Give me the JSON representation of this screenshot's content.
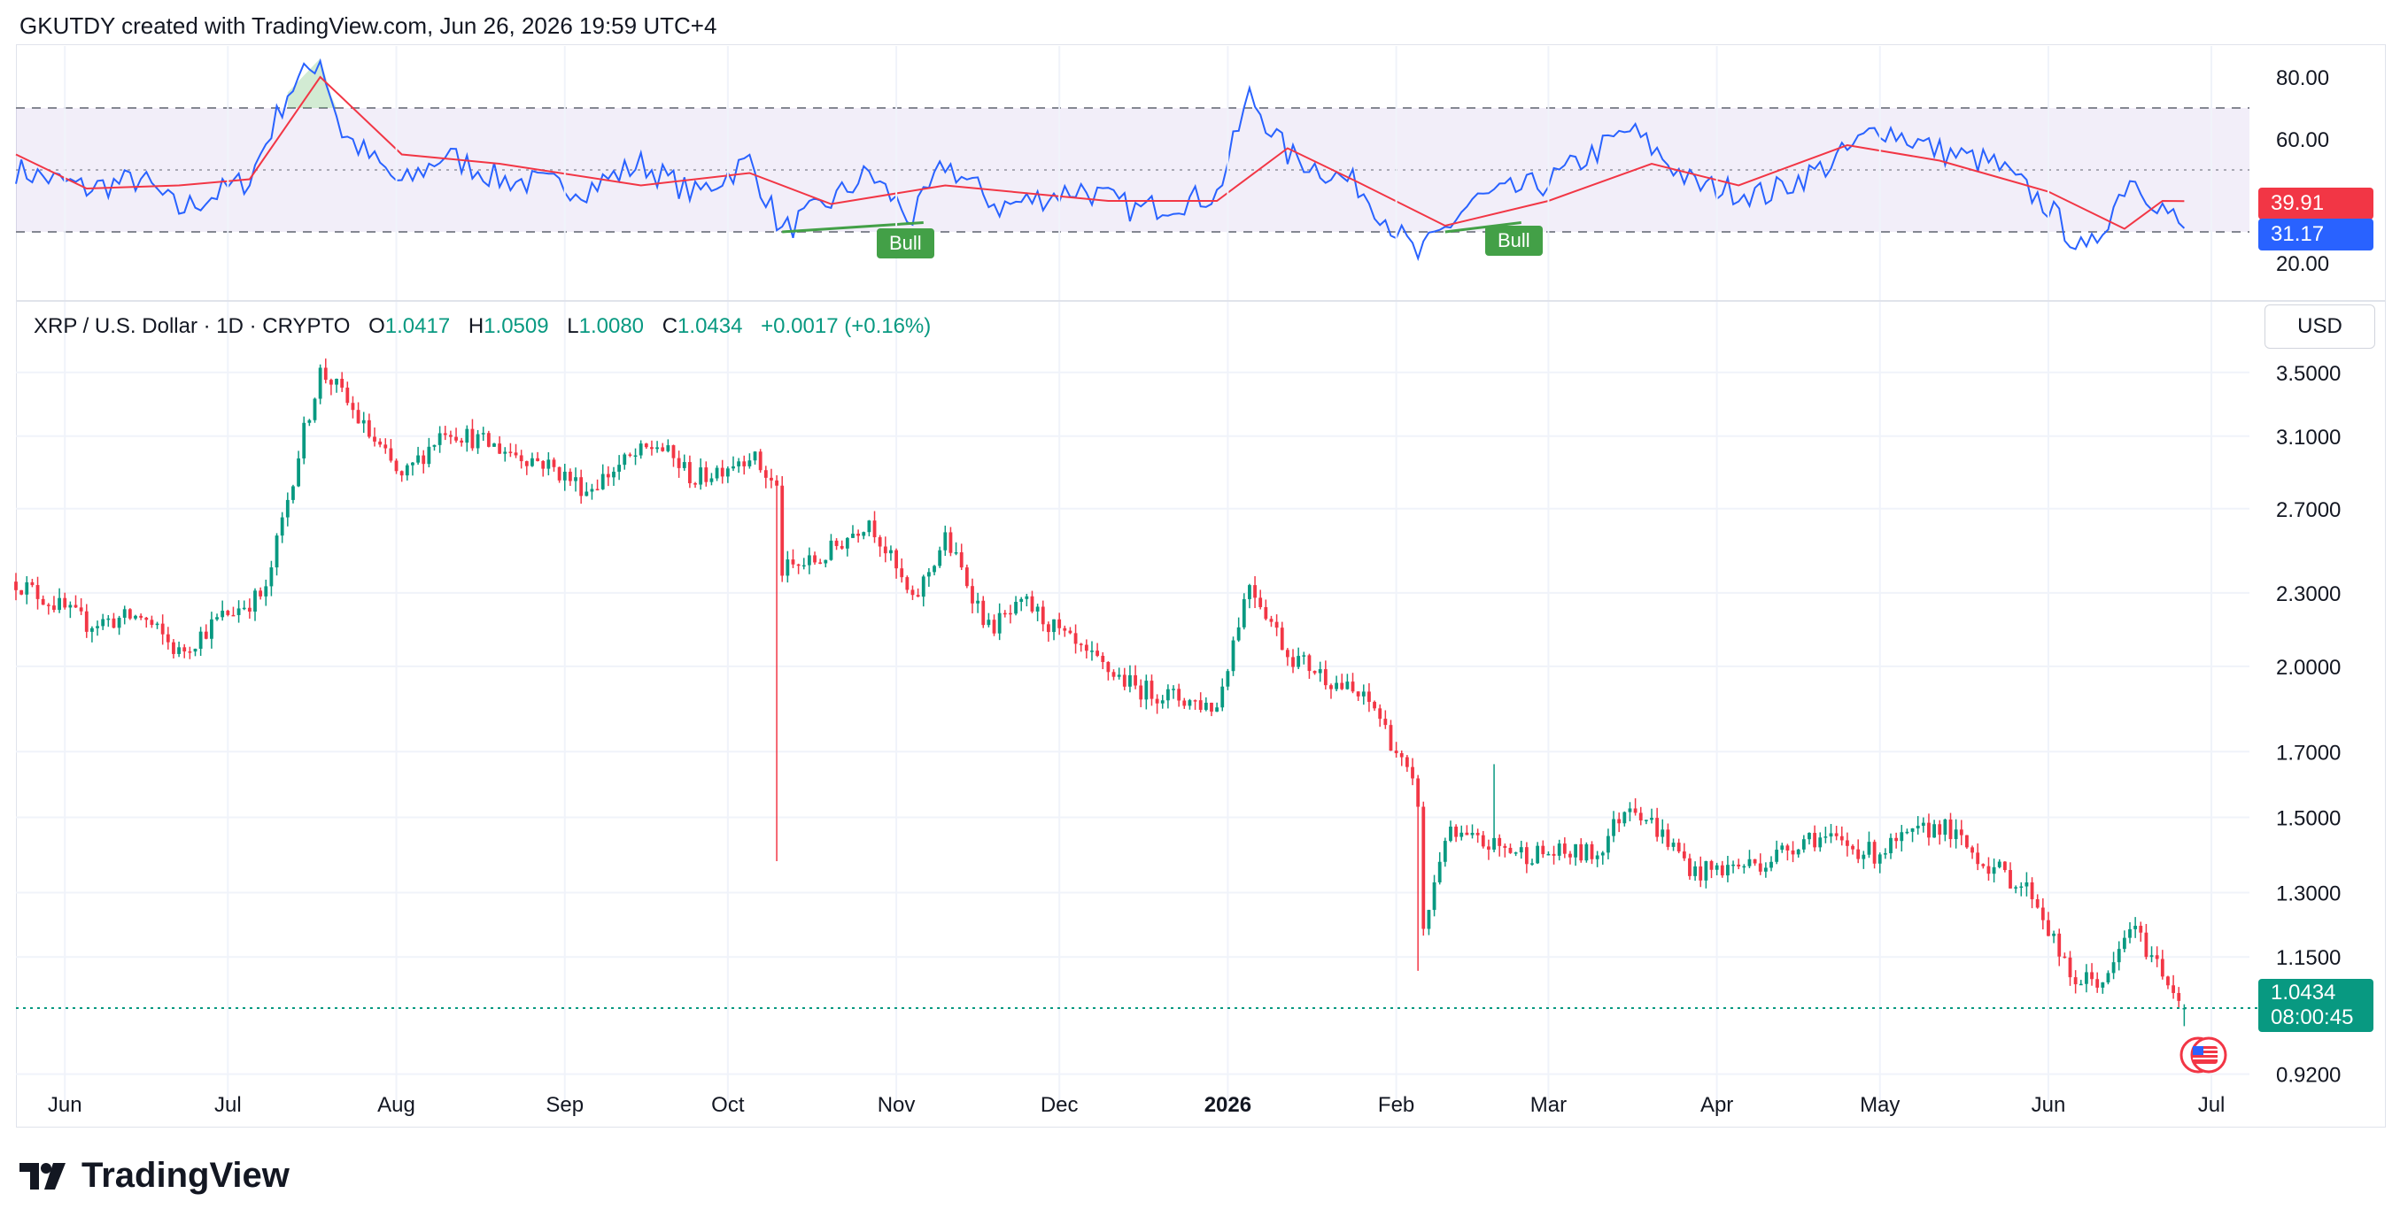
{
  "header": {
    "created_line": "GKUTDY created with TradingView.com, Jun 26, 2026 19:59 UTC+4"
  },
  "legend": {
    "symbol": "XRP / U.S. Dollar · 1D · CRYPTO",
    "o_label": "O",
    "o_value": "1.0417",
    "h_label": "H",
    "h_value": "1.0509",
    "l_label": "L",
    "l_value": "1.0080",
    "c_label": "C",
    "c_value": "1.0434",
    "change": "+0.0017 (+0.16%)"
  },
  "currency_button": "USD",
  "rsi_panel": {
    "ticks": [
      "80.00",
      "60.00",
      "20.00"
    ],
    "tag_ma": "39.91",
    "tag_rsi": "31.17",
    "bull_labels": [
      "Bull",
      "Bull"
    ]
  },
  "price_panel": {
    "ticks": [
      "3.5000",
      "3.1000",
      "2.7000",
      "2.3000",
      "2.0000",
      "1.7000",
      "1.5000",
      "1.3000",
      "1.1500",
      "0.9200"
    ],
    "last_price": "1.0434",
    "countdown": "08:00:45"
  },
  "time_axis": {
    "labels": [
      "Jun",
      "Jul",
      "Aug",
      "Sep",
      "Oct",
      "Nov",
      "Dec",
      "2026",
      "Feb",
      "Mar",
      "Apr",
      "May",
      "Jun",
      "Jul"
    ],
    "bold_label": "2026"
  },
  "footer": {
    "logo_text": "TradingView"
  },
  "colors": {
    "up": "#089981",
    "down": "#f23645",
    "rsi_line": "#2962ff",
    "rsi_ma": "#f23645",
    "rsi_band": "#7e57c2",
    "bull": "#43a047"
  },
  "chart_data": [
    {
      "type": "candlestick",
      "title": "XRP / U.S. Dollar · 1D · CRYPTO",
      "y_scale": "log",
      "ylim": [
        0.88,
        3.8
      ],
      "x_range": [
        "2025-05-23",
        "2026-07-08"
      ],
      "ohlc_last": {
        "open": 1.0417,
        "high": 1.0509,
        "low": 1.008,
        "close": 1.0434
      },
      "close_path": [
        [
          "2025-05-23",
          2.35
        ],
        [
          "2025-06-05",
          2.17
        ],
        [
          "2025-06-15",
          2.2
        ],
        [
          "2025-06-22",
          2.05
        ],
        [
          "2025-06-30",
          2.2
        ],
        [
          "2025-07-08",
          2.3
        ],
        [
          "2025-07-12",
          2.75
        ],
        [
          "2025-07-18",
          3.5
        ],
        [
          "2025-07-20",
          3.45
        ],
        [
          "2025-07-26",
          3.15
        ],
        [
          "2025-08-02",
          2.85
        ],
        [
          "2025-08-10",
          3.15
        ],
        [
          "2025-08-18",
          3.05
        ],
        [
          "2025-08-28",
          2.95
        ],
        [
          "2025-09-05",
          2.8
        ],
        [
          "2025-09-12",
          2.95
        ],
        [
          "2025-09-18",
          3.05
        ],
        [
          "2025-09-25",
          2.85
        ],
        [
          "2025-10-05",
          3.0
        ],
        [
          "2025-10-10",
          2.8
        ],
        [
          "2025-10-11",
          2.4
        ],
        [
          "2025-10-18",
          2.45
        ],
        [
          "2025-10-27",
          2.65
        ],
        [
          "2025-11-04",
          2.25
        ],
        [
          "2025-11-10",
          2.55
        ],
        [
          "2025-11-18",
          2.15
        ],
        [
          "2025-11-25",
          2.25
        ],
        [
          "2025-12-05",
          2.05
        ],
        [
          "2025-12-15",
          1.92
        ],
        [
          "2025-12-30",
          1.85
        ],
        [
          "2026-01-05",
          2.35
        ],
        [
          "2026-01-12",
          2.05
        ],
        [
          "2026-01-20",
          1.95
        ],
        [
          "2026-01-28",
          1.85
        ],
        [
          "2026-02-05",
          1.55
        ],
        [
          "2026-02-06",
          1.2
        ],
        [
          "2026-02-10",
          1.45
        ],
        [
          "2026-02-25",
          1.4
        ],
        [
          "2026-03-10",
          1.4
        ],
        [
          "2026-03-16",
          1.55
        ],
        [
          "2026-03-28",
          1.35
        ],
        [
          "2026-04-10",
          1.38
        ],
        [
          "2026-04-18",
          1.45
        ],
        [
          "2026-04-30",
          1.4
        ],
        [
          "2026-05-12",
          1.48
        ],
        [
          "2026-05-20",
          1.38
        ],
        [
          "2026-05-29",
          1.3
        ],
        [
          "2026-06-05",
          1.1
        ],
        [
          "2026-06-12",
          1.1
        ],
        [
          "2026-06-16",
          1.22
        ],
        [
          "2026-06-22",
          1.12
        ],
        [
          "2026-06-26",
          1.0434
        ]
      ]
    },
    {
      "type": "line",
      "title": "RSI",
      "ylim": [
        10,
        90
      ],
      "bands": {
        "upper": 70,
        "middle": 50,
        "lower": 30
      },
      "series": [
        {
          "role": "rsi",
          "points": [
            [
              "2025-05-23",
              50
            ],
            [
              "2025-06-05",
              44
            ],
            [
              "2025-06-15",
              47
            ],
            [
              "2025-06-22",
              37
            ],
            [
              "2025-07-05",
              47
            ],
            [
              "2025-07-12",
              75
            ],
            [
              "2025-07-18",
              86
            ],
            [
              "2025-07-22",
              62
            ],
            [
              "2025-08-02",
              45
            ],
            [
              "2025-08-10",
              55
            ],
            [
              "2025-08-20",
              47
            ],
            [
              "2025-09-05",
              44
            ],
            [
              "2025-09-15",
              52
            ],
            [
              "2025-09-25",
              42
            ],
            [
              "2025-10-05",
              53
            ],
            [
              "2025-10-11",
              30
            ],
            [
              "2025-10-20",
              40
            ],
            [
              "2025-10-27",
              49
            ],
            [
              "2025-11-04",
              34
            ],
            [
              "2025-11-10",
              52
            ],
            [
              "2025-11-20",
              38
            ],
            [
              "2025-12-05",
              44
            ],
            [
              "2025-12-15",
              37
            ],
            [
              "2025-12-30",
              42
            ],
            [
              "2026-01-05",
              74
            ],
            [
              "2026-01-12",
              55
            ],
            [
              "2026-01-25",
              45
            ],
            [
              "2026-02-05",
              22
            ],
            [
              "2026-02-15",
              40
            ],
            [
              "2026-03-01",
              46
            ],
            [
              "2026-03-16",
              63
            ],
            [
              "2026-03-28",
              45
            ],
            [
              "2026-04-10",
              42
            ],
            [
              "2026-04-22",
              52
            ],
            [
              "2026-05-01",
              64
            ],
            [
              "2026-05-12",
              56
            ],
            [
              "2026-05-22",
              52
            ],
            [
              "2026-06-01",
              38
            ],
            [
              "2026-06-08",
              22
            ],
            [
              "2026-06-16",
              48
            ],
            [
              "2026-06-22",
              38
            ],
            [
              "2026-06-26",
              31.17
            ]
          ]
        },
        {
          "role": "rsi_ma",
          "points": [
            [
              "2025-05-23",
              55
            ],
            [
              "2025-06-05",
              44
            ],
            [
              "2025-06-22",
              45
            ],
            [
              "2025-07-05",
              47
            ],
            [
              "2025-07-18",
              80
            ],
            [
              "2025-08-02",
              55
            ],
            [
              "2025-08-20",
              52
            ],
            [
              "2025-09-15",
              45
            ],
            [
              "2025-10-05",
              49
            ],
            [
              "2025-10-20",
              39
            ],
            [
              "2025-11-10",
              45
            ],
            [
              "2025-12-10",
              40
            ],
            [
              "2025-12-30",
              40
            ],
            [
              "2026-01-12",
              57
            ],
            [
              "2026-01-25",
              46
            ],
            [
              "2026-02-10",
              32
            ],
            [
              "2026-03-01",
              40
            ],
            [
              "2026-03-20",
              52
            ],
            [
              "2026-04-05",
              45
            ],
            [
              "2026-04-25",
              58
            ],
            [
              "2026-05-12",
              53
            ],
            [
              "2026-06-01",
              43
            ],
            [
              "2026-06-15",
              31
            ],
            [
              "2026-06-22",
              40
            ],
            [
              "2026-06-26",
              39.91
            ]
          ]
        }
      ],
      "divergences": [
        {
          "label": "Bull",
          "from": [
            "2025-10-11",
            30
          ],
          "to": [
            "2025-11-06",
            33
          ]
        },
        {
          "label": "Bull",
          "from": [
            "2026-02-10",
            30
          ],
          "to": [
            "2026-02-24",
            33
          ]
        }
      ]
    }
  ]
}
